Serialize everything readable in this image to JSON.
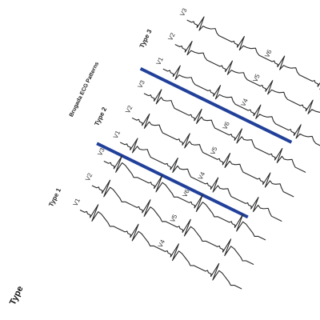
{
  "figure": {
    "title": "Brugada ECG Patterns",
    "corner_label": "Type",
    "sections": [
      {
        "label": "Type 1",
        "leads": [
          "V1",
          "V2",
          "V3",
          "V4",
          "V5",
          "V6"
        ]
      },
      {
        "label": "Type 2",
        "leads": [
          "V1",
          "V2",
          "V3",
          "V4",
          "V5",
          "V6"
        ]
      },
      {
        "label": "Type 3",
        "leads": [
          "V1",
          "V2",
          "V3",
          "V4",
          "V5",
          "V6"
        ]
      }
    ],
    "colors": {
      "separator": "#21409a",
      "trace": "#2a2a2a"
    }
  }
}
